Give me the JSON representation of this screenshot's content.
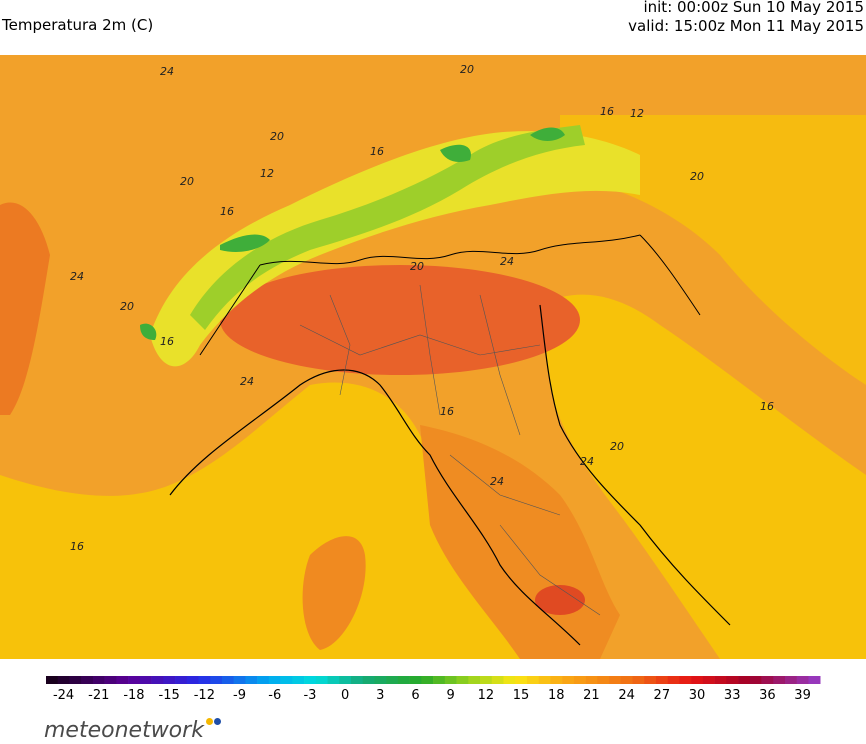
{
  "header": {
    "title": "Temperatura 2m (C)",
    "init": "init: 00:00z Sun 10 May 2015",
    "valid": "valid: 15:00z Mon 11 May 2015"
  },
  "map": {
    "contour_labels": [
      "24",
      "20",
      "16",
      "12",
      "20",
      "16",
      "12",
      "24",
      "20",
      "24",
      "16",
      "20",
      "24",
      "16",
      "20",
      "24",
      "16",
      "20",
      "16",
      "20",
      "24",
      "16"
    ]
  },
  "colorbar": {
    "ticks": [
      -24,
      -21,
      -18,
      -15,
      -12,
      -9,
      -6,
      -3,
      0,
      3,
      6,
      9,
      12,
      15,
      18,
      21,
      24,
      27,
      30,
      33,
      36,
      39
    ]
  },
  "footer": {
    "logo": "meteonetwork"
  }
}
